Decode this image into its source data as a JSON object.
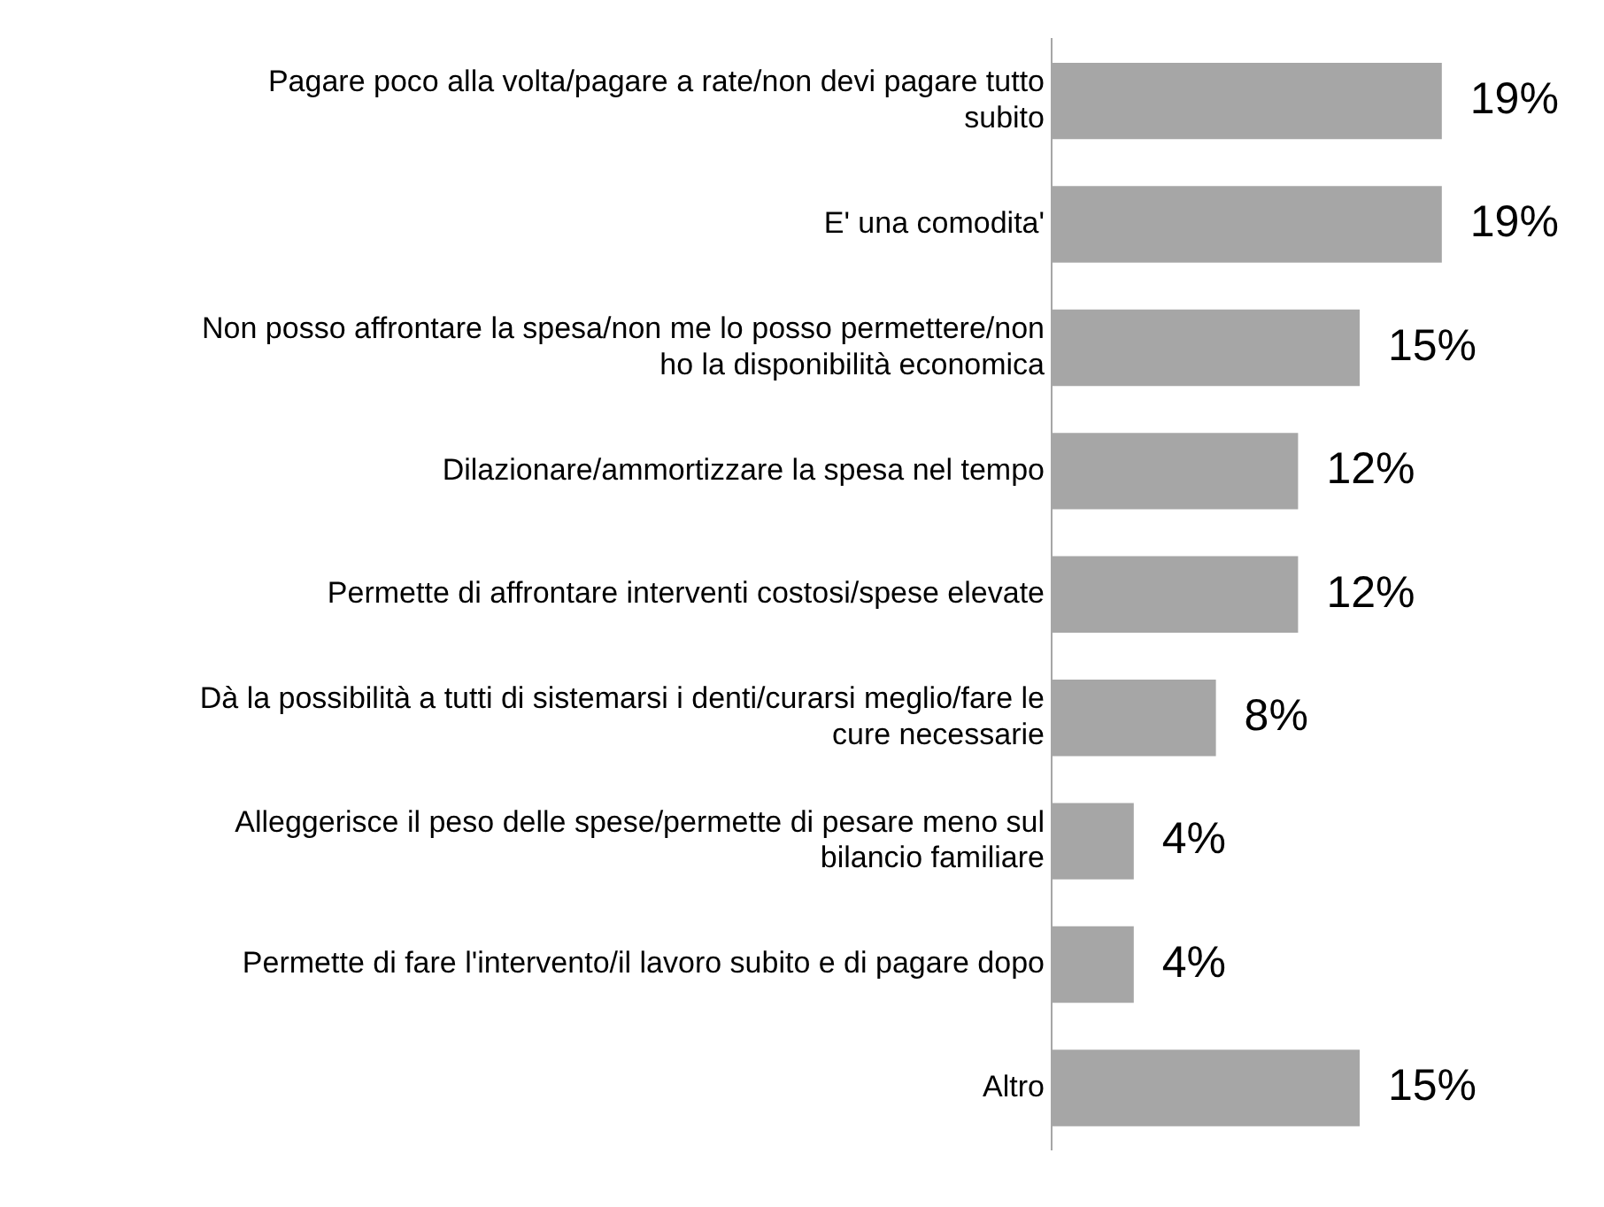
{
  "chart_data": {
    "type": "bar",
    "orientation": "horizontal",
    "categories": [
      "Pagare poco alla volta/pagare a rate/non devi pagare tutto subito",
      "E' una comodita'",
      "Non posso affrontare la spesa/non me lo posso permettere/non ho la disponibilità economica",
      "Dilazionare/ammortizzare la spesa nel tempo",
      "Permette di affrontare interventi costosi/spese elevate",
      "Dà la possibilità a tutti di sistemarsi i denti/curarsi meglio/fare le cure necessarie",
      "Alleggerisce il peso delle spese/permette di pesare meno sul bilancio familiare",
      "Permette di fare l'intervento/il lavoro subito e di pagare dopo",
      "Altro"
    ],
    "values": [
      19,
      19,
      15,
      12,
      12,
      8,
      4,
      4,
      15
    ],
    "value_labels": [
      "19%",
      "19%",
      "15%",
      "12%",
      "12%",
      "8%",
      "4%",
      "4%",
      "15%"
    ],
    "color": "#a6a6a6",
    "tick_labels": "y",
    "grid": false,
    "legend": false
  }
}
